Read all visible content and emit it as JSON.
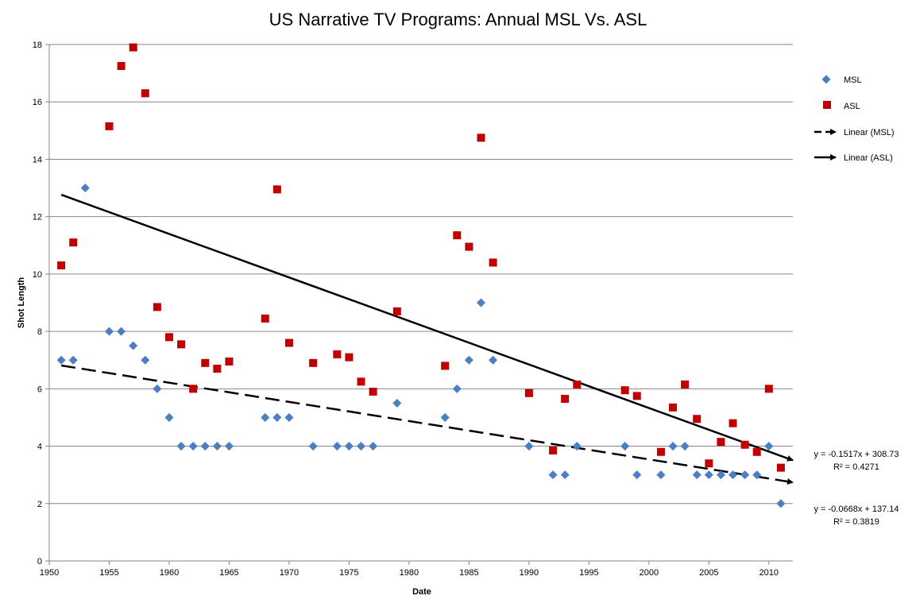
{
  "chart_data": {
    "type": "scatter",
    "title": "US Narrative TV Programs: Annual MSL Vs. ASL",
    "xlabel": "Date",
    "ylabel": "Shot Length",
    "xlim": [
      1950,
      2012
    ],
    "ylim": [
      0,
      18
    ],
    "x_ticks": [
      1950,
      1955,
      1960,
      1965,
      1970,
      1975,
      1980,
      1985,
      1990,
      1995,
      2000,
      2005,
      2010
    ],
    "y_ticks": [
      0,
      2,
      4,
      6,
      8,
      10,
      12,
      14,
      16,
      18
    ],
    "grid": "horizontal",
    "legend_position": "right",
    "series": [
      {
        "name": "MSL",
        "marker": "diamond",
        "color": "#4a7fc0",
        "points": [
          [
            1951,
            7
          ],
          [
            1952,
            7
          ],
          [
            1953,
            13
          ],
          [
            1955,
            8
          ],
          [
            1956,
            8
          ],
          [
            1957,
            7.5
          ],
          [
            1958,
            7
          ],
          [
            1959,
            6
          ],
          [
            1960,
            5
          ],
          [
            1961,
            4
          ],
          [
            1962,
            4
          ],
          [
            1963,
            4
          ],
          [
            1964,
            4
          ],
          [
            1965,
            4
          ],
          [
            1968,
            5
          ],
          [
            1969,
            5
          ],
          [
            1970,
            5
          ],
          [
            1972,
            4
          ],
          [
            1974,
            4
          ],
          [
            1975,
            4
          ],
          [
            1976,
            4
          ],
          [
            1977,
            4
          ],
          [
            1979,
            5.5
          ],
          [
            1983,
            5
          ],
          [
            1984,
            6
          ],
          [
            1985,
            7
          ],
          [
            1986,
            9
          ],
          [
            1987,
            7
          ],
          [
            1990,
            4
          ],
          [
            1992,
            3
          ],
          [
            1993,
            3
          ],
          [
            1994,
            4
          ],
          [
            1998,
            4
          ],
          [
            1999,
            3
          ],
          [
            2001,
            3
          ],
          [
            2002,
            4
          ],
          [
            2003,
            4
          ],
          [
            2004,
            3
          ],
          [
            2005,
            3
          ],
          [
            2006,
            3
          ],
          [
            2007,
            3
          ],
          [
            2008,
            3
          ],
          [
            2009,
            3
          ],
          [
            2010,
            4
          ],
          [
            2011,
            2
          ]
        ]
      },
      {
        "name": "ASL",
        "marker": "square",
        "color": "#c00000",
        "points": [
          [
            1951,
            10.3
          ],
          [
            1952,
            11.1
          ],
          [
            1955,
            15.15
          ],
          [
            1956,
            17.25
          ],
          [
            1957,
            17.9
          ],
          [
            1958,
            16.3
          ],
          [
            1959,
            8.85
          ],
          [
            1960,
            7.8
          ],
          [
            1961,
            7.55
          ],
          [
            1962,
            6
          ],
          [
            1963,
            6.9
          ],
          [
            1964,
            6.7
          ],
          [
            1965,
            6.95
          ],
          [
            1968,
            8.45
          ],
          [
            1969,
            12.95
          ],
          [
            1970,
            7.6
          ],
          [
            1972,
            6.9
          ],
          [
            1974,
            7.2
          ],
          [
            1975,
            7.1
          ],
          [
            1976,
            6.25
          ],
          [
            1977,
            5.9
          ],
          [
            1979,
            8.7
          ],
          [
            1983,
            6.8
          ],
          [
            1984,
            11.35
          ],
          [
            1985,
            10.95
          ],
          [
            1986,
            14.75
          ],
          [
            1987,
            10.4
          ],
          [
            1990,
            5.85
          ],
          [
            1992,
            3.85
          ],
          [
            1993,
            5.65
          ],
          [
            1994,
            6.15
          ],
          [
            1998,
            5.95
          ],
          [
            1999,
            5.75
          ],
          [
            2001,
            3.8
          ],
          [
            2002,
            5.35
          ],
          [
            2003,
            6.15
          ],
          [
            2004,
            4.95
          ],
          [
            2005,
            3.4
          ],
          [
            2006,
            4.15
          ],
          [
            2007,
            4.8
          ],
          [
            2008,
            4.05
          ],
          [
            2009,
            3.8
          ],
          [
            2010,
            6
          ],
          [
            2011,
            3.25
          ]
        ]
      }
    ],
    "trendlines": [
      {
        "name": "Linear (MSL)",
        "style": "dashed",
        "slope": -0.0668,
        "intercept": 137.14,
        "x_range": [
          1951,
          2012
        ],
        "equation": "y = -0.0668x + 137.14",
        "r2": "R² = 0.3819"
      },
      {
        "name": "Linear (ASL)",
        "style": "solid",
        "slope": -0.1517,
        "intercept": 308.73,
        "x_range": [
          1951,
          2012
        ],
        "equation": "y = -0.1517x + 308.73",
        "r2": "R² = 0.4271"
      }
    ],
    "legend": [
      "MSL",
      "ASL",
      "Linear (MSL)",
      "Linear (ASL)"
    ]
  }
}
